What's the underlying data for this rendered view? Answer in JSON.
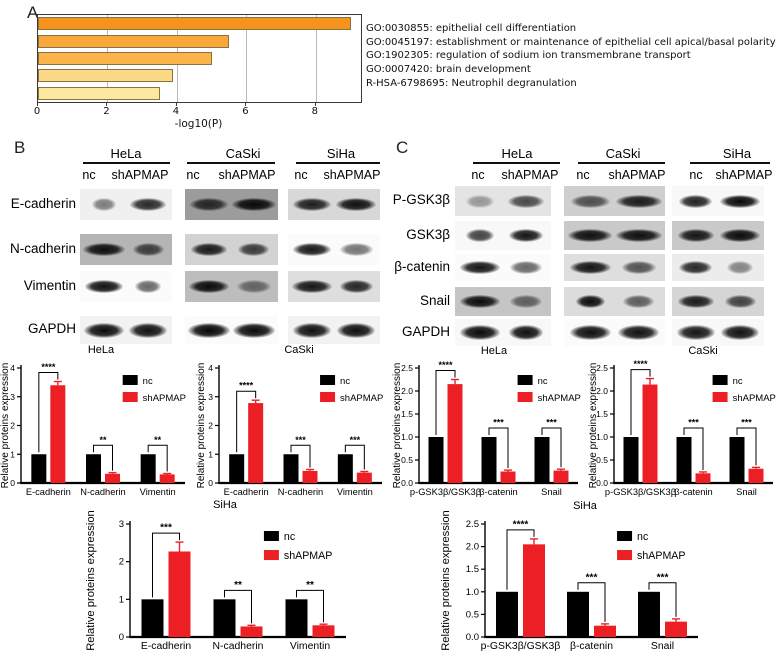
{
  "colors": {
    "black": "#000000",
    "red": "#EC2024",
    "axis": "#000000"
  },
  "panels": {
    "A": {
      "label": "A",
      "chart_data": {
        "type": "bar",
        "orientation": "horizontal",
        "title": "",
        "xlabel": "-log10(P)",
        "xmax": 9.3,
        "xticks": [
          0,
          2,
          4,
          6,
          8
        ],
        "gridlines": [
          2,
          4,
          6,
          8
        ],
        "terms": [
          "GO:0030855: epithelial cell differentiation",
          "GO:0045197: establishment or maintenance of epithelial cell apical/basal polarity",
          "GO:1902305: regulation of sodium ion transmembrane transport",
          "GO:0007420: brain development",
          "R-HSA-6798695: Neutrophil degranulation"
        ],
        "values": [
          9.0,
          5.5,
          5.0,
          3.9,
          3.5
        ],
        "bar_colors": [
          "#F6921E",
          "#FAA73B",
          "#FBB44A",
          "#FCD987",
          "#FDE8A2"
        ]
      }
    },
    "B": {
      "label": "B",
      "cell_lines": [
        "HeLa",
        "CaSki",
        "SiHa"
      ],
      "lane_labels": [
        "nc",
        "shAPMAP"
      ],
      "rows": [
        {
          "label": "E-cadherin",
          "strips": [
            {
              "bg": "#f0f0f0",
              "noisy": false,
              "bands": [
                [
                  0.55,
                  0.5
                ],
                [
                  0.8,
                  0.85
                ]
              ]
            },
            {
              "bg": "#9c9c9c",
              "noisy": true,
              "bands": [
                [
                  0.85,
                  0.8
                ],
                [
                  1.0,
                  0.98
                ]
              ]
            },
            {
              "bg": "#d8d8d8",
              "noisy": false,
              "bands": [
                [
                  0.85,
                  0.88
                ],
                [
                  0.9,
                  0.95
                ]
              ]
            }
          ]
        },
        {
          "label": "N-cadherin",
          "strips": [
            {
              "bg": "#b5b5b5",
              "noisy": true,
              "bands": [
                [
                  0.95,
                  0.95
                ],
                [
                  0.7,
                  0.7
                ]
              ]
            },
            {
              "bg": "#d2d2d2",
              "noisy": false,
              "bands": [
                [
                  0.8,
                  0.9
                ],
                [
                  0.7,
                  0.75
                ]
              ]
            },
            {
              "bg": "#fbfbfb",
              "noisy": false,
              "bands": [
                [
                  0.85,
                  0.92
                ],
                [
                  0.75,
                  0.55
                ]
              ]
            }
          ]
        },
        {
          "label": "Vimentin",
          "strips": [
            {
              "bg": "#fbfbfb",
              "noisy": false,
              "bands": [
                [
                  0.85,
                  0.95
                ],
                [
                  0.6,
                  0.6
                ]
              ]
            },
            {
              "bg": "#bdbdbd",
              "noisy": true,
              "bands": [
                [
                  0.9,
                  0.97
                ],
                [
                  0.75,
                  0.5
                ]
              ]
            },
            {
              "bg": "#dedede",
              "noisy": false,
              "bands": [
                [
                  0.9,
                  0.92
                ],
                [
                  0.75,
                  0.85
                ]
              ]
            }
          ]
        },
        {
          "label": "GAPDH",
          "strips": [
            {
              "bg": "#f2f2f2",
              "noisy": false,
              "bands": [
                [
                  0.9,
                  0.97
                ],
                [
                  0.85,
                  0.95
                ]
              ]
            },
            {
              "bg": "#fbfbfb",
              "noisy": false,
              "bands": [
                [
                  0.95,
                  0.99
                ],
                [
                  0.95,
                  0.98
                ]
              ]
            },
            {
              "bg": "#f2f2f2",
              "noisy": false,
              "bands": [
                [
                  0.85,
                  0.95
                ],
                [
                  0.85,
                  0.96
                ]
              ]
            }
          ]
        }
      ]
    },
    "C": {
      "label": "C",
      "cell_lines": [
        "HeLa",
        "CaSki",
        "SiHa"
      ],
      "lane_labels": [
        "nc",
        "shAPMAP"
      ],
      "rows": [
        {
          "label": "P-GSK3β",
          "strips": [
            {
              "bg": "#e4e4e4",
              "noisy": true,
              "bands": [
                [
                  0.6,
                  0.35
                ],
                [
                  0.8,
                  0.7
                ]
              ]
            },
            {
              "bg": "#cfcfcf",
              "noisy": true,
              "bands": [
                [
                  0.8,
                  0.65
                ],
                [
                  0.95,
                  0.9
                ]
              ]
            },
            {
              "bg": "#f8f8f8",
              "noisy": false,
              "bands": [
                [
                  0.75,
                  0.88
                ],
                [
                  0.9,
                  0.98
                ]
              ]
            }
          ]
        },
        {
          "label": "GSK3β",
          "strips": [
            {
              "bg": "#f8f8f8",
              "noisy": false,
              "bands": [
                [
                  0.6,
                  0.75
                ],
                [
                  0.75,
                  0.93
                ]
              ]
            },
            {
              "bg": "#c9c9c9",
              "noisy": true,
              "bands": [
                [
                  0.9,
                  0.95
                ],
                [
                  0.95,
                  0.95
                ]
              ]
            },
            {
              "bg": "#c9c9c9",
              "noisy": true,
              "bands": [
                [
                  0.8,
                  0.92
                ],
                [
                  0.9,
                  0.97
                ]
              ]
            }
          ]
        },
        {
          "label": "β-catenin",
          "strips": [
            {
              "bg": "#fbfbfb",
              "noisy": false,
              "bands": [
                [
                  0.85,
                  0.93
                ],
                [
                  0.7,
                  0.6
                ]
              ]
            },
            {
              "bg": "#dedede",
              "noisy": false,
              "bands": [
                [
                  0.85,
                  0.93
                ],
                [
                  0.7,
                  0.65
                ]
              ]
            },
            {
              "bg": "#ececec",
              "noisy": false,
              "bands": [
                [
                  0.75,
                  0.85
                ],
                [
                  0.6,
                  0.45
                ]
              ]
            }
          ]
        },
        {
          "label": "Snail",
          "strips": [
            {
              "bg": "#c5c5c5",
              "noisy": true,
              "bands": [
                [
                  0.85,
                  0.96
                ],
                [
                  0.7,
                  0.55
                ]
              ]
            },
            {
              "bg": "#dcdcdc",
              "noisy": false,
              "bands": [
                [
                  0.6,
                  0.97
                ],
                [
                  0.65,
                  0.6
                ]
              ]
            },
            {
              "bg": "#d5d5d5",
              "noisy": false,
              "bands": [
                [
                  0.8,
                  0.9
                ],
                [
                  0.7,
                  0.72
                ]
              ]
            }
          ]
        },
        {
          "label": "GAPDH",
          "strips": [
            {
              "bg": "#f8f8f8",
              "noisy": false,
              "bands": [
                [
                  0.85,
                  0.98
                ],
                [
                  0.75,
                  0.96
                ]
              ]
            },
            {
              "bg": "#fbfbfb",
              "noisy": false,
              "bands": [
                [
                  0.85,
                  0.96
                ],
                [
                  0.85,
                  0.95
                ]
              ]
            },
            {
              "bg": "#f8f8f8",
              "noisy": false,
              "bands": [
                [
                  0.85,
                  0.93
                ],
                [
                  0.85,
                  0.95
                ]
              ]
            }
          ]
        }
      ]
    }
  },
  "chart_data": [
    {
      "id": "B-HeLa",
      "type": "bar",
      "title": "HeLa",
      "ylabel": "Relative proteins expression",
      "ymax": 4,
      "yticks": [
        "0",
        "1",
        "2",
        "3",
        "4"
      ],
      "legend": [
        "nc",
        "shAPMAP"
      ],
      "groups": [
        {
          "label": "E-cadherin",
          "nc": 1.0,
          "sh": 3.4,
          "err": 0.13,
          "sig": "****"
        },
        {
          "label": "N-cadherin",
          "nc": 1.0,
          "sh": 0.32,
          "err": 0.04,
          "sig": "**"
        },
        {
          "label": "Vimentin",
          "nc": 1.0,
          "sh": 0.3,
          "err": 0.03,
          "sig": "**"
        }
      ]
    },
    {
      "id": "B-CaSki",
      "type": "bar",
      "title": "CaSki",
      "ylabel": "Relative proteins expression",
      "ymax": 4,
      "yticks": [
        "0",
        "1",
        "2",
        "3",
        "4"
      ],
      "legend": [
        "nc",
        "shAPMAP"
      ],
      "groups": [
        {
          "label": "E-cadherin",
          "nc": 1.0,
          "sh": 2.78,
          "err": 0.1,
          "sig": "****"
        },
        {
          "label": "N-cadherin",
          "nc": 1.0,
          "sh": 0.42,
          "err": 0.05,
          "sig": "***"
        },
        {
          "label": "Vimentin",
          "nc": 1.0,
          "sh": 0.36,
          "err": 0.04,
          "sig": "***"
        }
      ]
    },
    {
      "id": "C-HeLa",
      "type": "bar",
      "title": "HeLa",
      "ylabel": "Relative proteins expression",
      "ymax": 2.5,
      "yticks": [
        "0.0",
        "0.5",
        "1.0",
        "1.5",
        "2.0",
        "2.5"
      ],
      "legend": [
        "nc",
        "shAPMAP"
      ],
      "groups": [
        {
          "label": "p-GSK3β/GSK3β",
          "nc": 1.0,
          "sh": 2.15,
          "err": 0.1,
          "sig": "****"
        },
        {
          "label": "β-catenin",
          "nc": 1.0,
          "sh": 0.25,
          "err": 0.03,
          "sig": "***"
        },
        {
          "label": "Snail",
          "nc": 1.0,
          "sh": 0.27,
          "err": 0.03,
          "sig": "***"
        }
      ]
    },
    {
      "id": "C-CaSki",
      "type": "bar",
      "title": "CaSki",
      "ylabel": "Relative proteins expression",
      "ymax": 2.5,
      "yticks": [
        "0.0",
        "0.5",
        "1.0",
        "1.5",
        "2.0",
        "2.5"
      ],
      "legend": [
        "nc",
        "shAPMAP"
      ],
      "groups": [
        {
          "label": "p-GSK3β/GSK3β",
          "nc": 1.0,
          "sh": 2.14,
          "err": 0.13,
          "sig": "****"
        },
        {
          "label": "β-catenin",
          "nc": 1.0,
          "sh": 0.21,
          "err": 0.03,
          "sig": "***"
        },
        {
          "label": "Snail",
          "nc": 1.0,
          "sh": 0.31,
          "err": 0.03,
          "sig": "***"
        }
      ]
    },
    {
      "id": "B-SiHa",
      "type": "bar",
      "title": "SiHa",
      "ylabel": "Relative proteins expression",
      "ymax": 3,
      "yticks": [
        "0",
        "1",
        "2",
        "3"
      ],
      "legend": [
        "nc",
        "shAPMAP"
      ],
      "groups": [
        {
          "label": "E-cadherin",
          "nc": 1.0,
          "sh": 2.27,
          "err": 0.25,
          "sig": "***"
        },
        {
          "label": "N-cadherin",
          "nc": 1.0,
          "sh": 0.28,
          "err": 0.03,
          "sig": "**"
        },
        {
          "label": "Vimentin",
          "nc": 1.0,
          "sh": 0.31,
          "err": 0.03,
          "sig": "**"
        }
      ]
    },
    {
      "id": "C-SiHa",
      "type": "bar",
      "title": "SiHa",
      "ylabel": "Relative proteins expression",
      "ymax": 2.5,
      "yticks": [
        "0.0",
        "0.5",
        "1.0",
        "1.5",
        "2.0",
        "2.5"
      ],
      "legend": [
        "nc",
        "shAPMAP"
      ],
      "groups": [
        {
          "label": "p-GSK3β/GSK3β",
          "nc": 1.0,
          "sh": 2.05,
          "err": 0.12,
          "sig": "****"
        },
        {
          "label": "β-catenin",
          "nc": 1.0,
          "sh": 0.25,
          "err": 0.04,
          "sig": "***"
        },
        {
          "label": "Snail",
          "nc": 1.0,
          "sh": 0.34,
          "err": 0.06,
          "sig": "***"
        }
      ]
    }
  ]
}
